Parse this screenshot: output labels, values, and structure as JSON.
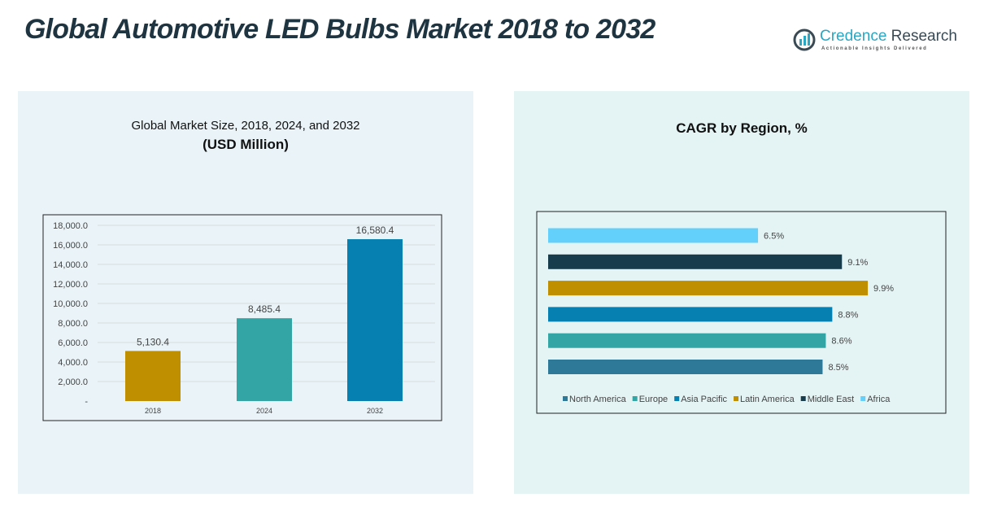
{
  "title": "Global Automotive LED Bulbs Market 2018 to 2032",
  "logo": {
    "name1": "Credence",
    "name2": " Research",
    "tagline": "Actionable Insights Delivered"
  },
  "chart_data": [
    {
      "type": "bar",
      "title": "Global Market Size, 2018, 2024, and 2032",
      "subtitle": "(USD Million)",
      "categories": [
        "2018",
        "2024",
        "2032"
      ],
      "values": [
        5130.4,
        8485.4,
        16580.4
      ],
      "data_labels": [
        "5,130.4",
        "8,485.4",
        "16,580.4"
      ],
      "colors": [
        "#c08f00",
        "#34a5a5",
        "#0580b0"
      ],
      "ylim": [
        0,
        18000
      ],
      "yticks": [
        "-",
        "2,000.0",
        "4,000.0",
        "6,000.0",
        "8,000.0",
        "10,000.0",
        "12,000.0",
        "14,000.0",
        "16,000.0",
        "18,000.0"
      ],
      "grid": true
    },
    {
      "type": "bar",
      "orientation": "horizontal",
      "title": "CAGR by Region, %",
      "categories": [
        "North America",
        "Europe",
        "Asia Pacific",
        "Latin America",
        "Middle East",
        "Africa"
      ],
      "values": [
        8.5,
        8.6,
        8.8,
        9.9,
        9.1,
        6.5
      ],
      "data_labels": [
        "8.5%",
        "8.6%",
        "8.8%",
        "9.9%",
        "9.1%",
        "6.5%"
      ],
      "colors": [
        "#2e7898",
        "#34a5a5",
        "#0580b0",
        "#c08f00",
        "#173d4d",
        "#63d0fb"
      ],
      "legend": "bottom"
    }
  ]
}
